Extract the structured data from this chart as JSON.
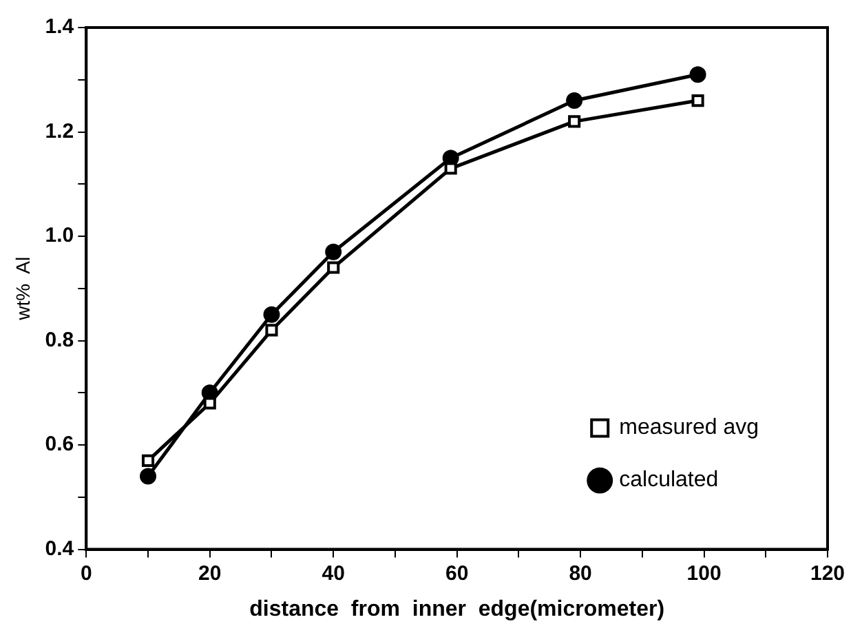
{
  "chart_data": {
    "type": "line",
    "xlabel": "distance  from  inner  edge(micrometer)",
    "ylabel": "wt%  Al",
    "x": [
      10,
      20,
      30,
      40,
      59,
      79,
      99
    ],
    "series": [
      {
        "name": "measured avg",
        "color": "#000000",
        "marker": "square",
        "values": [
          0.57,
          0.68,
          0.82,
          0.94,
          1.13,
          1.22,
          1.26
        ]
      },
      {
        "name": "calculated",
        "color": "#000000",
        "marker": "circle",
        "values": [
          0.54,
          0.7,
          0.85,
          0.97,
          1.15,
          1.26,
          1.31
        ]
      }
    ],
    "xlim": [
      0,
      120
    ],
    "xticks": [
      0,
      {
        "value": 10,
        "label": null
      },
      20,
      {
        "value": 30,
        "label": null
      },
      40,
      {
        "value": 50,
        "label": null
      },
      60,
      {
        "value": 70,
        "label": null
      },
      80,
      {
        "value": 90,
        "label": null
      },
      100,
      {
        "value": 110,
        "label": null
      },
      120
    ],
    "ylim": [
      0.4,
      1.4
    ],
    "yticks": [
      {
        "value": 0.4,
        "label": "0.4"
      },
      {
        "value": 0.5,
        "label": null
      },
      {
        "value": 0.6,
        "label": "0.6"
      },
      {
        "value": 0.7,
        "label": null
      },
      {
        "value": 0.8,
        "label": "0.8"
      },
      {
        "value": 0.9,
        "label": null
      },
      {
        "value": 1.0,
        "label": "1.0"
      },
      {
        "value": 1.1,
        "label": null
      },
      {
        "value": 1.2,
        "label": "1.2"
      },
      {
        "value": 1.3,
        "label": null
      },
      {
        "value": 1.4,
        "label": "1.4"
      }
    ],
    "grid": false,
    "legend": "bottom right",
    "line_style": "solid"
  }
}
